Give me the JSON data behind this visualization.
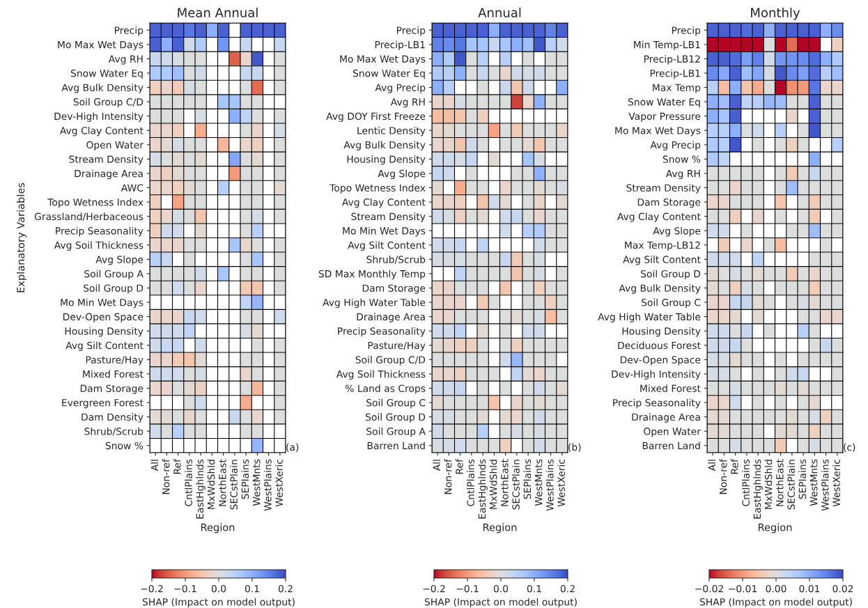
{
  "chart_data": [
    {
      "type": "heatmap",
      "grid": true,
      "title": "Mean Annual",
      "xlabel": "Region",
      "ylabel": "Explanatory Variables",
      "clabel": "SHAP (Impact on model output)",
      "annotations": [
        "(a)"
      ],
      "clim": [
        -0.2,
        0.2
      ],
      "cticks": [
        {
          "value": -0.2,
          "label": "−0.2"
        },
        {
          "value": -0.1,
          "label": "−0.1"
        },
        {
          "value": 0,
          "label": "0.0"
        },
        {
          "value": 0.1,
          "label": "0.1"
        },
        {
          "value": 0.2,
          "label": "0.2"
        }
      ],
      "categories": [
        "All",
        "Non-ref",
        "Ref",
        "CntlPlains",
        "EastHghlnds",
        "MxWdShld",
        "NorthEast",
        "SECstPlain",
        "SEPlains",
        "WestMnts",
        "WestPlains",
        "WestXeric"
      ],
      "y_categories": [
        "Precip",
        "Mo Max Wet Days",
        "Avg RH",
        "Snow Water Eq",
        "Avg Bulk Density",
        "Soil Group C/D",
        "Dev-High Intensity",
        "Avg Clay Content",
        "Open Water",
        "Stream Density",
        "Drainage Area",
        "AWC",
        "Topo Wetness Index",
        "Grassland/Herbaceous",
        "Precip Seasonality",
        "Avg Soil Thickness",
        "Avg Slope",
        "Soil Group A",
        "Soil Group D",
        "Mo Min Wet Days",
        "Dev-Open Space",
        "Housing Density",
        "Avg Silt Content",
        "Pasture/Hay",
        "Mixed Forest",
        "Dam Storage",
        "Evergreen Forest",
        "Dam Density",
        "Shrub/Scrub",
        "Snow %"
      ],
      "cells": [
        [
          0.18,
          0.18,
          0.18,
          0.16,
          0.18,
          0.1,
          0.18,
          null,
          0.18,
          0.18,
          0.18,
          0.18
        ],
        [
          0.18,
          0.1,
          0.18,
          0.02,
          0.06,
          null,
          0.13,
          null,
          0.03,
          null,
          null,
          0.03
        ],
        [
          0.03,
          0.02,
          0.01,
          0,
          0,
          null,
          null,
          -0.15,
          -0.02,
          0.19,
          null,
          0
        ],
        [
          0.06,
          0.06,
          0.08,
          0,
          0.02,
          null,
          null,
          null,
          0.03,
          0.03,
          null,
          0
        ],
        [
          -0.03,
          -0.02,
          -0.04,
          0.01,
          0,
          null,
          null,
          null,
          0,
          -0.14,
          null,
          0
        ],
        [
          0,
          0,
          0,
          0,
          0,
          null,
          0.07,
          0.07,
          0,
          0,
          null,
          null
        ],
        [
          0,
          0,
          0,
          null,
          0.01,
          null,
          null,
          0.1,
          0.04,
          0,
          null,
          0
        ],
        [
          -0.02,
          -0.02,
          -0.03,
          null,
          -0.08,
          null,
          null,
          null,
          0,
          -0.02,
          null,
          0.01
        ],
        [
          -0.02,
          -0.01,
          0.01,
          0,
          0,
          null,
          -0.07,
          null,
          -0.02,
          -0.03,
          null,
          0
        ],
        [
          0.01,
          0,
          -0.01,
          0,
          -0.01,
          null,
          null,
          0.11,
          0,
          -0.01,
          null,
          0
        ],
        [
          -0.02,
          -0.03,
          -0.01,
          0,
          0,
          null,
          null,
          -0.1,
          0,
          0,
          null,
          0
        ],
        [
          -0.02,
          -0.02,
          -0.03,
          -0.01,
          0,
          null,
          0.05,
          null,
          0,
          0,
          null,
          -0.01
        ],
        [
          -0.03,
          null,
          -0.09,
          0,
          0,
          null,
          null,
          null,
          0,
          0,
          null,
          0
        ],
        [
          -0.03,
          -0.02,
          0.01,
          0,
          -0.05,
          null,
          null,
          null,
          0,
          0.01,
          null,
          0
        ],
        [
          -0.03,
          0.02,
          0.02,
          null,
          -0.01,
          null,
          null,
          null,
          0,
          0.05,
          null,
          null
        ],
        [
          -0.02,
          -0.02,
          -0.02,
          0,
          0,
          null,
          null,
          0.07,
          -0.02,
          0,
          null,
          0
        ],
        [
          0.05,
          0.03,
          null,
          0,
          null,
          null,
          null,
          null,
          0,
          0.07,
          null,
          0
        ],
        [
          0,
          0,
          0,
          0,
          0.02,
          null,
          0.07,
          null,
          0,
          0,
          null,
          0
        ],
        [
          0,
          0,
          0.02,
          0,
          -0.02,
          null,
          null,
          null,
          -0.04,
          -0.05,
          null,
          0
        ],
        [
          null,
          null,
          null,
          null,
          null,
          null,
          null,
          null,
          0.04,
          0.09,
          null,
          null
        ],
        [
          -0.02,
          -0.02,
          -0.02,
          0.03,
          0.02,
          null,
          null,
          null,
          0,
          0,
          null,
          0.02
        ],
        [
          0.02,
          0.02,
          0.02,
          0.04,
          null,
          null,
          null,
          null,
          0.01,
          -0.01,
          null,
          null
        ],
        [
          0.02,
          0.03,
          0.03,
          null,
          0.02,
          null,
          null,
          null,
          null,
          0,
          null,
          0
        ],
        [
          -0.02,
          -0.02,
          -0.04,
          -0.05,
          -0.01,
          null,
          null,
          null,
          0,
          0,
          null,
          0
        ],
        [
          0.02,
          0.02,
          0.02,
          0,
          0.01,
          null,
          null,
          null,
          -0.02,
          0,
          null,
          0
        ],
        [
          -0.02,
          -0.02,
          0,
          -0.01,
          -0.03,
          null,
          null,
          null,
          0,
          -0.07,
          null,
          0
        ],
        [
          null,
          null,
          null,
          0,
          0.02,
          null,
          null,
          null,
          -0.08,
          null,
          null,
          0
        ],
        [
          -0.01,
          -0.01,
          0,
          -0.02,
          0,
          null,
          null,
          0.03,
          0,
          -0.02,
          null,
          0
        ],
        [
          0.02,
          0,
          0.05,
          0,
          0,
          null,
          null,
          null,
          0,
          0,
          null,
          null
        ],
        [
          null,
          null,
          null,
          null,
          null,
          null,
          null,
          null,
          null,
          0.09,
          null,
          null
        ]
      ]
    },
    {
      "type": "heatmap",
      "grid": true,
      "title": "Annual",
      "xlabel": "Region",
      "clabel": "SHAP (Impact on model output)",
      "annotations": [
        "(b)"
      ],
      "clim": [
        -0.2,
        0.2
      ],
      "cticks": [
        {
          "value": -0.2,
          "label": "−0.2"
        },
        {
          "value": -0.1,
          "label": "−0.1"
        },
        {
          "value": 0,
          "label": "0.0"
        },
        {
          "value": 0.1,
          "label": "0.1"
        },
        {
          "value": 0.2,
          "label": "0.2"
        }
      ],
      "categories": [
        "All",
        "Non-ref",
        "Ref",
        "CntlPlains",
        "EastHghlnds",
        "MxWdShld",
        "NorthEast",
        "SECstPlain",
        "SEPlains",
        "WestMnts",
        "WestPlains",
        "WestXeric"
      ],
      "y_categories": [
        "Precip",
        "Precip-LB1",
        "Mo Max Wet Days",
        "Snow Water Eq",
        "Avg Precip",
        "Avg RH",
        "Avg DOY First Freeze",
        "Lentic Density",
        "Avg Bulk Density",
        "Housing Density",
        "Avg Slope",
        "Topo Wetness Index",
        "Avg Clay Content",
        "Stream Density",
        "Mo Min Wet Days",
        "Avg Silt Content",
        "Shrub/Scrub",
        "SD Max Monthly Temp",
        "Dam Storage",
        "Avg High Water Table",
        "Drainage Area",
        "Precip Seasonality",
        "Pasture/Hay",
        "Soil Group C/D",
        "Avg Soil Thickness",
        "% Land as Crops",
        "Soil Group C",
        "Soil Group D",
        "Soil Group A",
        "Barren Land"
      ],
      "cells": [
        [
          0.18,
          0.18,
          0.18,
          0.18,
          0.18,
          0.1,
          0.18,
          0.18,
          0.18,
          0.18,
          0.15,
          0.18
        ],
        [
          0.15,
          0.14,
          0.16,
          0.07,
          0.07,
          0.03,
          0.07,
          0.1,
          0.08,
          0.19,
          0.05,
          0.02
        ],
        [
          0.1,
          0.06,
          0.19,
          0,
          0.05,
          null,
          0.05,
          null,
          0,
          null,
          0,
          0
        ],
        [
          0.06,
          0.05,
          0.1,
          0,
          0.03,
          0,
          -0.02,
          0.02,
          0.01,
          0.02,
          0,
          0
        ],
        [
          0.1,
          0.05,
          null,
          null,
          0,
          null,
          0.03,
          -0.05,
          0.02,
          null,
          null,
          0.1
        ],
        [
          -0.02,
          -0.02,
          0.01,
          0,
          0,
          0,
          0,
          -0.17,
          -0.02,
          0.1,
          0,
          0
        ],
        [
          -0.06,
          -0.06,
          -0.05,
          0,
          -0.03,
          null,
          null,
          null,
          null,
          null,
          null,
          null
        ],
        [
          -0.02,
          -0.01,
          0,
          0,
          0,
          -0.09,
          0,
          -0.04,
          0,
          0,
          0,
          -0.02
        ],
        [
          -0.02,
          -0.02,
          -0.05,
          0.02,
          0,
          null,
          0,
          0,
          -0.01,
          -0.05,
          0,
          0
        ],
        [
          0.02,
          0.02,
          0.01,
          0.03,
          null,
          -0.01,
          null,
          null,
          0.07,
          0.01,
          null,
          null
        ],
        [
          0.03,
          0.02,
          null,
          0,
          null,
          null,
          null,
          0,
          0,
          0.1,
          0,
          0
        ],
        [
          -0.01,
          null,
          -0.08,
          0,
          0,
          null,
          -0.02,
          0,
          0,
          -0.01,
          0,
          0.01
        ],
        [
          -0.02,
          -0.02,
          -0.03,
          null,
          -0.05,
          0.02,
          -0.01,
          null,
          0,
          -0.02,
          null,
          -0.01
        ],
        [
          0.02,
          0.01,
          -0.03,
          0,
          -0.01,
          null,
          0.02,
          0.03,
          0,
          -0.02,
          0,
          0
        ],
        [
          null,
          null,
          null,
          null,
          null,
          null,
          0.02,
          null,
          0.05,
          0.06,
          0,
          0
        ],
        [
          0.02,
          0.02,
          0.03,
          null,
          0.04,
          null,
          null,
          null,
          null,
          0.02,
          0,
          0
        ],
        [
          0.01,
          0.01,
          0.01,
          0,
          0,
          0,
          0.03,
          -0.04,
          0,
          0.01,
          null,
          null
        ],
        [
          null,
          null,
          0.04,
          0,
          0,
          0,
          0,
          -0.05,
          0,
          0.01,
          null,
          0
        ],
        [
          -0.02,
          -0.02,
          0,
          0,
          0,
          null,
          -0.05,
          null,
          0,
          -0.03,
          0,
          0
        ],
        [
          -0.02,
          -0.02,
          -0.02,
          null,
          -0.04,
          0,
          null,
          null,
          0,
          0,
          -0.03,
          0
        ],
        [
          -0.02,
          -0.02,
          0,
          0,
          0,
          null,
          0,
          -0.01,
          0,
          0.01,
          -0.06,
          0
        ],
        [
          0.02,
          0.02,
          0.04,
          null,
          -0.01,
          null,
          0,
          null,
          0.02,
          0.02,
          null,
          null
        ],
        [
          -0.01,
          -0.02,
          -0.03,
          -0.03,
          0,
          null,
          0,
          -0.03,
          0,
          0,
          0,
          0
        ],
        [
          0,
          0,
          0,
          0,
          0,
          null,
          0.02,
          0.09,
          0,
          0,
          0,
          null
        ],
        [
          -0.02,
          -0.02,
          -0.03,
          0,
          0,
          0,
          null,
          0.04,
          -0.01,
          -0.02,
          0,
          0
        ],
        [
          0.02,
          0.02,
          0.03,
          null,
          0,
          null,
          0,
          null,
          0,
          0.02,
          0,
          -0.01
        ],
        [
          -0.01,
          0,
          0,
          0,
          0,
          -0.05,
          null,
          -0.02,
          0,
          -0.01,
          0,
          0
        ],
        [
          0.01,
          0.01,
          0,
          0,
          -0.01,
          null,
          -0.01,
          -0.02,
          0,
          0.02,
          0,
          0
        ],
        [
          0.02,
          0,
          0,
          0,
          0.05,
          null,
          0,
          0.01,
          0,
          0.01,
          0,
          0
        ],
        [
          0.01,
          0.01,
          0.02,
          0,
          0,
          0,
          -0.03,
          null,
          0,
          0.02,
          0,
          0
        ]
      ]
    },
    {
      "type": "heatmap",
      "grid": true,
      "title": "Monthly",
      "xlabel": "Region",
      "clabel": "SHAP (Impact on model output)",
      "annotations": [
        "(c)"
      ],
      "clim": [
        -0.02,
        0.02
      ],
      "cticks": [
        {
          "value": -0.02,
          "label": "−0.02"
        },
        {
          "value": -0.01,
          "label": "−0.01"
        },
        {
          "value": 0,
          "label": "0.00"
        },
        {
          "value": 0.01,
          "label": "0.01"
        },
        {
          "value": 0.02,
          "label": "0.02"
        }
      ],
      "categories": [
        "All",
        "Non-ref",
        "Ref",
        "CntlPlains",
        "EastHghlnds",
        "MxWdShld",
        "NorthEast",
        "SECstPlain",
        "SEPlains",
        "WestMnts",
        "WestPlains",
        "WestXeric"
      ],
      "y_categories": [
        "Precip",
        "Min Temp-LB1",
        "Precip-LB12",
        "Precip-LB1",
        "Max Temp",
        "Snow Water Eq",
        "Vapor Pressure",
        "Mo Max Wet Days",
        "Avg Precip",
        "Snow %",
        "Avg RH",
        "Stream Density",
        "Dam Storage",
        "Avg Clay Content",
        "Avg Slope",
        "Max Temp-LB12",
        "Avg Silt Content",
        "Soil Group D",
        "Avg Bulk Density",
        "Soil Group C",
        "Avg High Water Table",
        "Housing Density",
        "Deciduous Forest",
        "Dev-Open Space",
        "Dev-High Intensity",
        "Mixed Forest",
        "Precip Seasonality",
        "Drainage Area",
        "Open Water",
        "Barren Land"
      ],
      "cells": [
        [
          0.018,
          0.018,
          0.018,
          0.017,
          0.018,
          0.01,
          0.018,
          0.018,
          0.018,
          0.018,
          0.01,
          0.014
        ],
        [
          -0.02,
          -0.02,
          -0.02,
          -0.02,
          -0.02,
          0,
          -0.02,
          -0.014,
          -0.02,
          -0.02,
          null,
          -0.003
        ],
        [
          0.018,
          0.018,
          0.017,
          0.012,
          0.015,
          0.002,
          0.013,
          0.013,
          0.014,
          0.017,
          0.01,
          0.006
        ],
        [
          0.014,
          0.011,
          0.018,
          0.008,
          0.011,
          0.001,
          0.019,
          0.014,
          0.012,
          0.017,
          0.005,
          0.008
        ],
        [
          0.005,
          -0.006,
          0.01,
          -0.005,
          -0.008,
          0,
          -0.02,
          -0.011,
          -0.01,
          0.016,
          -0.002,
          -0.002
        ],
        [
          0.01,
          0.008,
          0.018,
          0.004,
          0.005,
          0.009,
          0.008,
          0,
          0,
          0.018,
          0,
          0
        ],
        [
          0.01,
          0.007,
          0.018,
          null,
          null,
          null,
          null,
          -0.002,
          null,
          0.018,
          0,
          0
        ],
        [
          0.005,
          0.005,
          0.01,
          0,
          0.002,
          null,
          0.005,
          null,
          0,
          0.019,
          0,
          0
        ],
        [
          0.006,
          0.005,
          0.019,
          null,
          0,
          null,
          0,
          -0.003,
          0,
          null,
          null,
          0.005
        ],
        [
          0.006,
          0.004,
          null,
          null,
          null,
          null,
          null,
          null,
          null,
          0.01,
          null,
          null
        ],
        [
          0,
          0,
          0,
          0,
          0,
          null,
          0,
          -0.004,
          0,
          0.003,
          0,
          0
        ],
        [
          0,
          0,
          -0.002,
          0,
          0,
          null,
          0,
          0.008,
          0,
          0,
          0,
          0
        ],
        [
          -0.002,
          -0.002,
          0,
          0,
          0,
          null,
          -0.005,
          null,
          0,
          -0.004,
          0,
          0
        ],
        [
          0,
          0,
          -0.003,
          null,
          -0.002,
          null,
          0,
          null,
          0,
          -0.004,
          null,
          0
        ],
        [
          0.002,
          0.002,
          null,
          0,
          null,
          null,
          null,
          0,
          0,
          0.008,
          0,
          0
        ],
        [
          null,
          -0.004,
          null,
          -0.002,
          null,
          0,
          -0.006,
          null,
          null,
          null,
          0,
          null
        ],
        [
          0.002,
          0.002,
          0.002,
          null,
          0.004,
          null,
          null,
          null,
          null,
          0,
          0,
          0
        ],
        [
          -0.001,
          0,
          0.001,
          0,
          -0.001,
          0,
          0,
          -0.004,
          0,
          -0.002,
          0,
          0
        ],
        [
          -0.001,
          0,
          -0.003,
          0.001,
          0,
          null,
          0,
          0,
          0,
          -0.004,
          0,
          0
        ],
        [
          -0.002,
          -0.002,
          0.003,
          0.003,
          -0.001,
          0,
          null,
          0,
          0.001,
          -0.001,
          0,
          0
        ],
        [
          -0.002,
          -0.002,
          -0.001,
          null,
          -0.001,
          null,
          null,
          null,
          0,
          0,
          -0.002,
          -0.002
        ],
        [
          0.002,
          0.002,
          0,
          0.003,
          null,
          0,
          null,
          null,
          0.005,
          0,
          null,
          null
        ],
        [
          0.002,
          0.002,
          0.003,
          0,
          null,
          null,
          null,
          null,
          null,
          0,
          0.003,
          0
        ],
        [
          0.001,
          0.001,
          -0.001,
          0,
          0,
          null,
          0,
          null,
          0,
          0,
          0,
          0
        ],
        [
          0.001,
          0.001,
          0,
          null,
          0,
          null,
          0,
          0.002,
          0.003,
          null,
          null,
          0
        ],
        [
          0,
          0,
          0.001,
          0,
          0,
          0,
          -0.001,
          0,
          -0.001,
          0,
          0,
          0
        ],
        [
          -0.002,
          -0.002,
          0.002,
          null,
          0,
          null,
          0,
          null,
          0,
          -0.001,
          null,
          null
        ],
        [
          -0.001,
          -0.001,
          0,
          0,
          0,
          0,
          0,
          -0.001,
          0,
          0.001,
          -0.003,
          0
        ],
        [
          -0.001,
          -0.001,
          0,
          0,
          0,
          null,
          -0.001,
          -0.001,
          0,
          -0.003,
          0,
          0
        ],
        [
          0,
          0,
          0.001,
          0,
          0,
          0,
          -0.004,
          null,
          0,
          0.001,
          0,
          0
        ]
      ]
    }
  ]
}
